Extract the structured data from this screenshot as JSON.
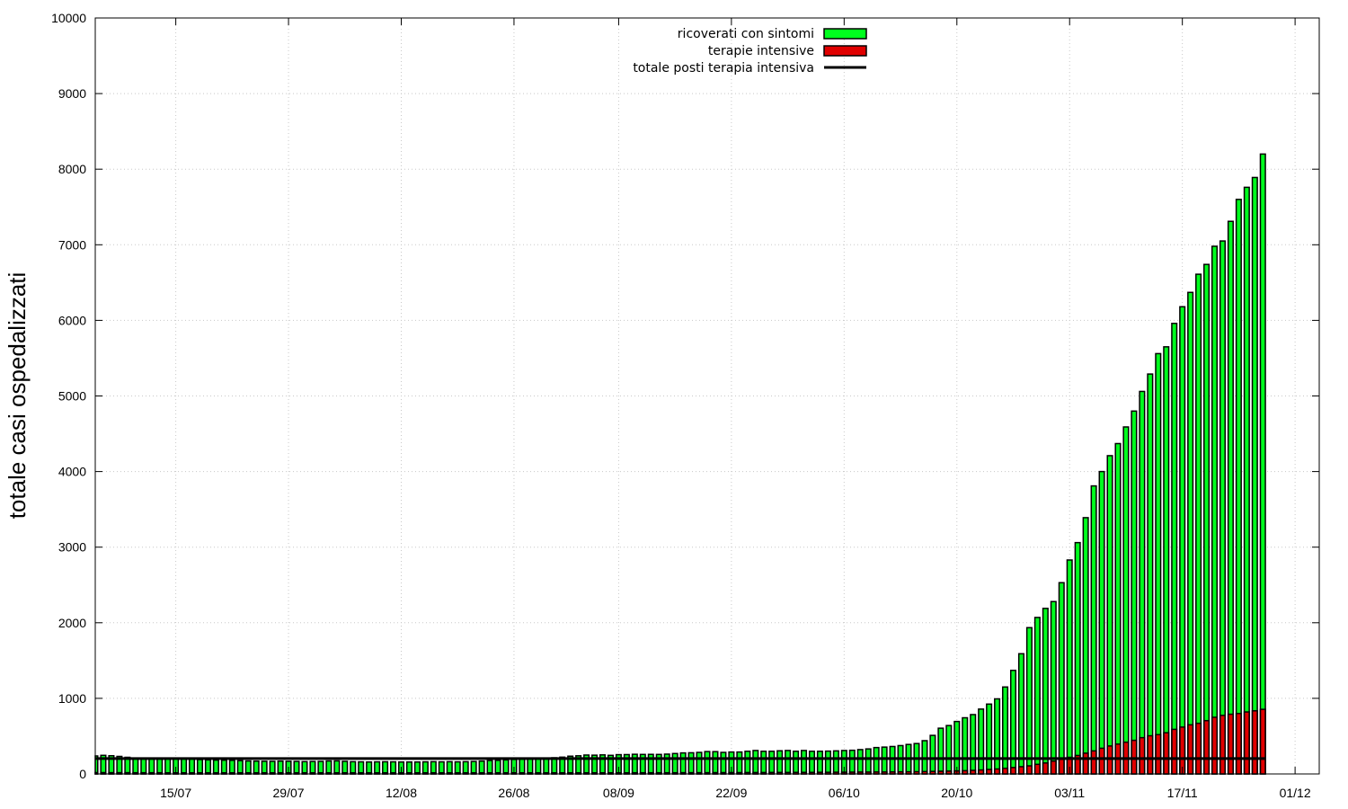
{
  "chart_data": {
    "type": "bar",
    "ylabel": "totale casi ospedalizzati",
    "xlabel": "",
    "ylim": [
      0,
      10000
    ],
    "yticks": [
      "0",
      "1000",
      "2000",
      "3000",
      "4000",
      "5000",
      "6000",
      "7000",
      "8000",
      "9000",
      "10000"
    ],
    "xticks": [
      "15/07",
      "29/07",
      "12/08",
      "26/08",
      "08/09",
      "22/09",
      "06/10",
      "20/10",
      "03/11",
      "17/11",
      "01/12"
    ],
    "x_start": "2020-07-05",
    "x_end": "2020-12-04",
    "x_first_bar": "2020-07-05",
    "grid": true,
    "legend_position": "top-center",
    "series": [
      {
        "name": "ricoverati con sintomi",
        "color": "#00ff1e",
        "type": "bar",
        "values": [
          238,
          246,
          241,
          232,
          220,
          211,
          207,
          203,
          205,
          209,
          206,
          200,
          198,
          190,
          186,
          183,
          182,
          180,
          176,
          172,
          170,
          168,
          167,
          170,
          168,
          166,
          163,
          165,
          166,
          172,
          173,
          167,
          162,
          160,
          158,
          160,
          161,
          160,
          158,
          158,
          158,
          160,
          162,
          160,
          162,
          160,
          162,
          165,
          170,
          178,
          180,
          186,
          192,
          197,
          200,
          204,
          210,
          214,
          222,
          235,
          240,
          250,
          248,
          252,
          246,
          255,
          256,
          260,
          258,
          259,
          258,
          262,
          270,
          278,
          280,
          285,
          296,
          295,
          285,
          290,
          290,
          300,
          310,
          300,
          300,
          306,
          310,
          300,
          310,
          300,
          300,
          302,
          305,
          310,
          313,
          322,
          331,
          349,
          355,
          363,
          375,
          390,
          402,
          440,
          510,
          605,
          640,
          694,
          743,
          785,
          858,
          924,
          993,
          1150,
          1370,
          1590,
          1935,
          2070,
          2190,
          2280,
          2530,
          2830,
          3060,
          3390,
          3810,
          4000,
          4210,
          4370,
          4590,
          4800,
          5060,
          5290,
          5560,
          5650,
          5960,
          6180,
          6370,
          6610,
          6740,
          6980,
          7050,
          7310,
          7600,
          7760,
          7890,
          8200
        ]
      },
      {
        "name": "terapie intensive",
        "color": "#e00000",
        "type": "bar",
        "values": [
          18,
          18,
          17,
          17,
          17,
          16,
          16,
          16,
          16,
          15,
          15,
          15,
          15,
          15,
          15,
          15,
          15,
          15,
          15,
          15,
          15,
          15,
          15,
          15,
          15,
          15,
          15,
          15,
          15,
          15,
          15,
          15,
          15,
          15,
          15,
          15,
          15,
          15,
          15,
          15,
          15,
          15,
          15,
          15,
          15,
          15,
          15,
          15,
          15,
          15,
          15,
          15,
          15,
          15,
          15,
          15,
          15,
          15,
          15,
          15,
          15,
          15,
          15,
          15,
          15,
          15,
          15,
          16,
          16,
          16,
          16,
          16,
          16,
          17,
          17,
          17,
          17,
          18,
          18,
          18,
          18,
          19,
          19,
          19,
          20,
          20,
          20,
          21,
          21,
          21,
          22,
          22,
          23,
          23,
          24,
          25,
          25,
          26,
          26,
          27,
          28,
          29,
          30,
          32,
          34,
          36,
          38,
          40,
          43,
          48,
          53,
          60,
          66,
          75,
          85,
          96,
          107,
          127,
          145,
          170,
          195,
          220,
          245,
          275,
          305,
          340,
          370,
          395,
          420,
          445,
          480,
          505,
          520,
          545,
          590,
          620,
          650,
          670,
          705,
          750,
          775,
          790,
          800,
          820,
          835,
          855
        ]
      },
      {
        "name": "totale posti terapia intensiva",
        "color": "#000000",
        "type": "line",
        "value": 204
      }
    ]
  }
}
